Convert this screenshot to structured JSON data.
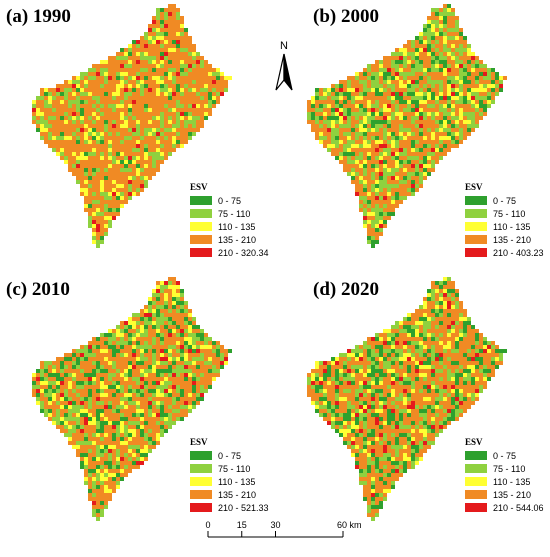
{
  "panels": [
    {
      "title": "(a) 1990",
      "legend_title": "ESV",
      "classes": [
        "0 - 75",
        "75 - 110",
        "110 - 135",
        "135 - 210",
        "210 - 320.34"
      ]
    },
    {
      "title": "(b) 2000",
      "legend_title": "ESV",
      "classes": [
        "0 - 75",
        "75 - 110",
        "110 - 135",
        "135 - 210",
        "210 - 403.23"
      ]
    },
    {
      "title": "(c) 2010",
      "legend_title": "ESV",
      "classes": [
        "0 - 75",
        "75 - 110",
        "110 - 135",
        "135 - 210",
        "210 - 521.33"
      ]
    },
    {
      "title": "(d) 2020",
      "legend_title": "ESV",
      "classes": [
        "0 - 75",
        "75 - 110",
        "110 - 135",
        "135 - 210",
        "210 - 544.06"
      ]
    }
  ],
  "class_colors": [
    "#2ea02e",
    "#8fd13f",
    "#ffff33",
    "#f08a24",
    "#e41a1c"
  ],
  "north_arrow": {
    "label": "N"
  },
  "scale_bar": {
    "ticks": [
      "0",
      "15",
      "30",
      "60 km"
    ],
    "tick_values": [
      0,
      15,
      30,
      60
    ]
  }
}
